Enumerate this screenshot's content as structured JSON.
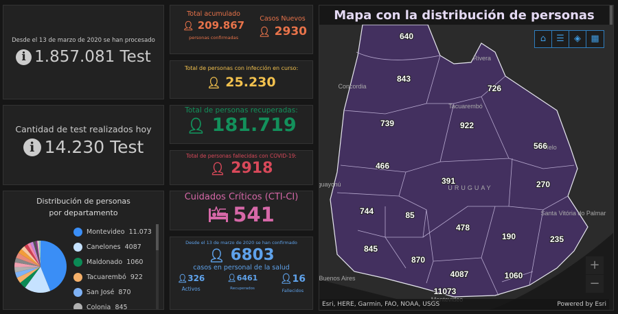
{
  "tests_total": {
    "caption": "Desde el 13 de marzo de 2020 se han procesado",
    "value": "1.857.081 Test",
    "icon": "info-icon"
  },
  "tests_today": {
    "caption": "Cantidad de test realizados hoy",
    "value": "14.230 Test",
    "icon": "info-icon"
  },
  "distribution": {
    "title": "Distribución de personas por departamento"
  },
  "total_acumulado": {
    "label": "Total acumulado",
    "value": "209.867",
    "sub": "personas confirmadas",
    "color": "#e8734a"
  },
  "casos_nuevos": {
    "label": "Casos Nuevos",
    "value": "2930",
    "color": "#e8734a"
  },
  "en_curso": {
    "label": "Total de personas con infección en curso:",
    "value": "25.230",
    "color": "#f2c14e"
  },
  "recuperadas": {
    "label": "Total de personas recuperadas:",
    "value": "181.719",
    "color": "#13905b"
  },
  "fallecidas": {
    "label": "Total de personas fallecidas con COVID-19:",
    "value": "2918",
    "color": "#d9495a"
  },
  "cti": {
    "label": "Cuidados Críticos (CTI-CI)",
    "value": "541",
    "color": "#d668a8",
    "icon": "hospital-bed-icon"
  },
  "salud": {
    "caption": "Desde el 13 de marzo de 2020 se han confirmado",
    "value": "6803",
    "sub": "casos en personal de la salud",
    "color": "#5fa2ea",
    "stats": [
      {
        "value": "326",
        "label": "Activos"
      },
      {
        "value": "6461",
        "label": "Recuperados"
      },
      {
        "value": "16",
        "label": "Fallecidos"
      }
    ]
  },
  "map": {
    "title": "Mapa con la distribución de personas",
    "attribution": "Esri, HERE, Garmin, FAO, NOAA, USGS",
    "powered": "Powered by Esri",
    "tools": [
      "home-icon",
      "legend-icon",
      "layers-icon",
      "basemap-gallery-icon"
    ],
    "fill": "#43305f",
    "cities": [
      "Rivera",
      "Concordia",
      "Tacuarembó",
      "Melo",
      "eguaychú",
      "URUGUAY",
      "Santa Vitória do Palmar",
      "Buenos Aires",
      "Montevideo"
    ],
    "values": [
      "640",
      "843",
      "726",
      "739",
      "922",
      "566",
      "466",
      "391",
      "270",
      "744",
      "85",
      "478",
      "190",
      "235",
      "845",
      "870",
      "4087",
      "1060",
      "11073"
    ]
  },
  "chart_data": {
    "type": "pie",
    "title": "Distribución de personas por departamento",
    "legend": [
      {
        "name": "Montevideo",
        "label": "11.073",
        "value": 11073,
        "color": "#3a8ef6"
      },
      {
        "name": "Canelones",
        "label": "4087",
        "value": 4087,
        "color": "#c6e2ff"
      },
      {
        "name": "Maldonado",
        "label": "1060",
        "value": 1060,
        "color": "#0b8a55"
      },
      {
        "name": "Tacuarembó",
        "label": "922",
        "value": 922,
        "color": "#f5b06a"
      },
      {
        "name": "San José",
        "label": "870",
        "value": 870,
        "color": "#7fb2f5"
      },
      {
        "name": "Colonia",
        "label": "845",
        "value": 845,
        "color": "#b0b0b0"
      }
    ],
    "other_values": [
      744,
      739,
      843,
      726,
      640,
      566,
      478,
      466,
      391,
      270,
      235,
      190,
      85
    ],
    "other_colors": [
      "#f0a0b0",
      "#888888",
      "#e7897a",
      "#f29c3a",
      "#f6c7a0",
      "#d04050",
      "#f58aa8",
      "#c586d8",
      "#555555",
      "#8a3a8a",
      "#f7d0d8",
      "#7ac9c0",
      "#d0e8e0"
    ],
    "legend_placement": "right"
  }
}
